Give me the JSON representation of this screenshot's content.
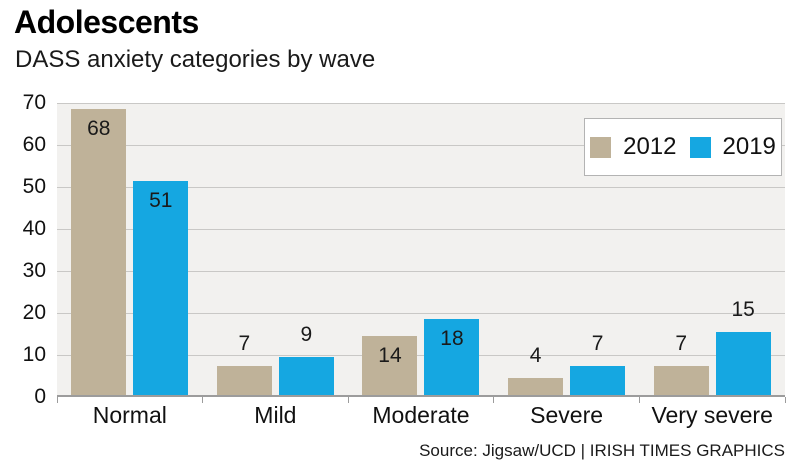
{
  "header": {
    "title": "Adolescents",
    "subtitle": "DASS anxiety categories by wave"
  },
  "chart_data": {
    "type": "bar",
    "title": "Adolescents",
    "subtitle": "DASS anxiety categories by wave",
    "categories": [
      "Normal",
      "Mild",
      "Moderate",
      "Severe",
      "Very severe"
    ],
    "series": [
      {
        "name": "2012",
        "color": "#bfb299",
        "values": [
          68,
          7,
          14,
          4,
          7
        ],
        "label_placement": [
          "inside",
          "above",
          "inside",
          "above",
          "above"
        ]
      },
      {
        "name": "2019",
        "color": "#15a7e1",
        "values": [
          51,
          9,
          18,
          7,
          15
        ],
        "label_placement": [
          "inside",
          "above",
          "inside",
          "above",
          "above"
        ]
      }
    ],
    "xlabel": "",
    "ylabel": "",
    "ylim": [
      0,
      70
    ],
    "yticks": [
      0,
      10,
      20,
      30,
      40,
      50,
      60,
      70
    ],
    "grid": true,
    "legend_position": "top-right",
    "colors": {
      "plot_background": "#f2f1ef",
      "gridline": "#c9c8c6",
      "axis": "#9c9c9c",
      "text": "#111111"
    }
  },
  "legend": {
    "items": [
      {
        "label": "2012",
        "color": "#bfb299"
      },
      {
        "label": "2019",
        "color": "#15a7e1"
      }
    ]
  },
  "footer": {
    "source": "Source: Jigsaw/UCD | IRISH TIMES GRAPHICS"
  }
}
